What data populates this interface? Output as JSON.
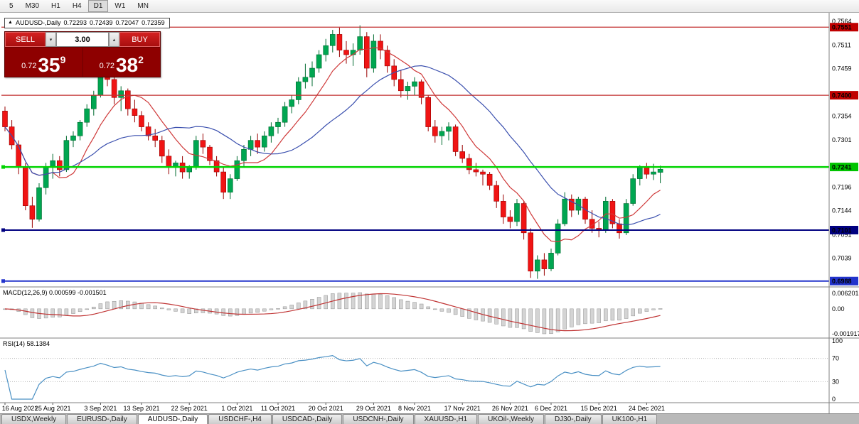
{
  "toolbar": {
    "timeframes": [
      "5",
      "M30",
      "H1",
      "H4",
      "D1",
      "W1",
      "MN"
    ],
    "active": "D1"
  },
  "icons": {
    "chevron_up": "▴",
    "chevron_down": "▾",
    "symbol_marker": "▲"
  },
  "chart_header": {
    "symbol_label": "AUDUSD-,Daily",
    "open": "0.72293",
    "high": "0.72439",
    "low": "0.72047",
    "close": "0.72359"
  },
  "trade_panel": {
    "sell_label": "SELL",
    "buy_label": "BUY",
    "volume": "3.00",
    "sell_price": {
      "base": "0.72",
      "big": "35",
      "sup": "9"
    },
    "buy_price": {
      "base": "0.72",
      "big": "38",
      "sup": "2"
    }
  },
  "indicators": {
    "macd_label": "MACD(12,26,9) 0.000599 -0.001501",
    "rsi_label": "RSI(14) 58.1384"
  },
  "tabs": {
    "items": [
      "USDX,Weekly",
      "EURUSD-,Daily",
      "AUDUSD-,Daily",
      "USDCHF-,H4",
      "USDCAD-,Daily",
      "USDCNH-,Daily",
      "XAUUSD-,H1",
      "UKOil-,Weekly",
      "DJ30-,Daily",
      "UK100-,H1"
    ],
    "active_index": 2
  },
  "chart_data": {
    "type": "candlestick",
    "symbol": "AUDUSD-",
    "timeframe": "Daily",
    "price_range": [
      0.6975,
      0.7575
    ],
    "candle_spacing": 9.6,
    "candles": [
      [
        0.7365,
        0.7375,
        0.732,
        0.733
      ],
      [
        0.733,
        0.7345,
        0.728,
        0.729
      ],
      [
        0.729,
        0.73,
        0.7225,
        0.724
      ],
      [
        0.724,
        0.725,
        0.7145,
        0.7155
      ],
      [
        0.7155,
        0.7175,
        0.7106,
        0.7125
      ],
      [
        0.7125,
        0.7205,
        0.712,
        0.7195
      ],
      [
        0.7195,
        0.725,
        0.718,
        0.724
      ],
      [
        0.724,
        0.727,
        0.7215,
        0.7255
      ],
      [
        0.7255,
        0.7265,
        0.722,
        0.7235
      ],
      [
        0.7235,
        0.731,
        0.723,
        0.73
      ],
      [
        0.73,
        0.732,
        0.7285,
        0.731
      ],
      [
        0.731,
        0.7345,
        0.73,
        0.734
      ],
      [
        0.734,
        0.738,
        0.733,
        0.737
      ],
      [
        0.737,
        0.741,
        0.7355,
        0.74
      ],
      [
        0.74,
        0.7478,
        0.7395,
        0.7465
      ],
      [
        0.7465,
        0.747,
        0.742,
        0.7435
      ],
      [
        0.7435,
        0.7445,
        0.738,
        0.7395
      ],
      [
        0.7395,
        0.742,
        0.7365,
        0.741
      ],
      [
        0.741,
        0.7415,
        0.7355,
        0.737
      ],
      [
        0.737,
        0.739,
        0.734,
        0.7355
      ],
      [
        0.7355,
        0.7365,
        0.732,
        0.733
      ],
      [
        0.733,
        0.734,
        0.73,
        0.731
      ],
      [
        0.731,
        0.7325,
        0.7285,
        0.73
      ],
      [
        0.73,
        0.731,
        0.725,
        0.7265
      ],
      [
        0.7265,
        0.728,
        0.7225,
        0.724
      ],
      [
        0.724,
        0.7255,
        0.722,
        0.725
      ],
      [
        0.725,
        0.7265,
        0.7215,
        0.723
      ],
      [
        0.723,
        0.7245,
        0.7215,
        0.724
      ],
      [
        0.724,
        0.731,
        0.7235,
        0.73
      ],
      [
        0.73,
        0.7315,
        0.727,
        0.7285
      ],
      [
        0.7285,
        0.729,
        0.7245,
        0.7255
      ],
      [
        0.7255,
        0.7265,
        0.722,
        0.723
      ],
      [
        0.723,
        0.724,
        0.717,
        0.7185
      ],
      [
        0.7185,
        0.7225,
        0.717,
        0.7215
      ],
      [
        0.7215,
        0.7265,
        0.721,
        0.7255
      ],
      [
        0.7255,
        0.729,
        0.724,
        0.728
      ],
      [
        0.728,
        0.731,
        0.7265,
        0.73
      ],
      [
        0.73,
        0.7315,
        0.727,
        0.7285
      ],
      [
        0.7285,
        0.732,
        0.7275,
        0.731
      ],
      [
        0.731,
        0.734,
        0.7295,
        0.733
      ],
      [
        0.733,
        0.735,
        0.7315,
        0.734
      ],
      [
        0.734,
        0.7385,
        0.733,
        0.7375
      ],
      [
        0.7375,
        0.74,
        0.736,
        0.739
      ],
      [
        0.739,
        0.744,
        0.738,
        0.743
      ],
      [
        0.743,
        0.747,
        0.7415,
        0.744
      ],
      [
        0.744,
        0.7475,
        0.742,
        0.746
      ],
      [
        0.746,
        0.75,
        0.745,
        0.749
      ],
      [
        0.749,
        0.7525,
        0.7475,
        0.751
      ],
      [
        0.751,
        0.7545,
        0.7495,
        0.7535
      ],
      [
        0.7535,
        0.755,
        0.7485,
        0.75
      ],
      [
        0.75,
        0.752,
        0.747,
        0.749
      ],
      [
        0.749,
        0.7515,
        0.7465,
        0.75
      ],
      [
        0.75,
        0.7555,
        0.749,
        0.753
      ],
      [
        0.753,
        0.754,
        0.744,
        0.746
      ],
      [
        0.746,
        0.7535,
        0.745,
        0.752
      ],
      [
        0.752,
        0.7535,
        0.748,
        0.75
      ],
      [
        0.75,
        0.751,
        0.745,
        0.7465
      ],
      [
        0.7465,
        0.748,
        0.742,
        0.7435
      ],
      [
        0.7435,
        0.7455,
        0.7395,
        0.741
      ],
      [
        0.741,
        0.743,
        0.739,
        0.742
      ],
      [
        0.742,
        0.744,
        0.74,
        0.743
      ],
      [
        0.743,
        0.7435,
        0.738,
        0.7395
      ],
      [
        0.7395,
        0.74,
        0.732,
        0.733
      ],
      [
        0.733,
        0.7345,
        0.7295,
        0.731
      ],
      [
        0.731,
        0.733,
        0.729,
        0.732
      ],
      [
        0.732,
        0.734,
        0.73,
        0.733
      ],
      [
        0.733,
        0.7335,
        0.7265,
        0.7275
      ],
      [
        0.7275,
        0.729,
        0.725,
        0.726
      ],
      [
        0.726,
        0.727,
        0.7225,
        0.7235
      ],
      [
        0.7235,
        0.725,
        0.722,
        0.723
      ],
      [
        0.723,
        0.7235,
        0.72,
        0.7225
      ],
      [
        0.7225,
        0.723,
        0.719,
        0.72
      ],
      [
        0.72,
        0.721,
        0.715,
        0.7165
      ],
      [
        0.7165,
        0.718,
        0.7115,
        0.713
      ],
      [
        0.713,
        0.7145,
        0.7105,
        0.712
      ],
      [
        0.712,
        0.717,
        0.711,
        0.716
      ],
      [
        0.716,
        0.7165,
        0.708,
        0.7095
      ],
      [
        0.7095,
        0.7105,
        0.6995,
        0.701
      ],
      [
        0.701,
        0.7045,
        0.6993,
        0.7035
      ],
      [
        0.7035,
        0.705,
        0.7,
        0.7015
      ],
      [
        0.7015,
        0.706,
        0.701,
        0.705
      ],
      [
        0.705,
        0.7125,
        0.7045,
        0.7115
      ],
      [
        0.7115,
        0.7185,
        0.711,
        0.717
      ],
      [
        0.717,
        0.718,
        0.713,
        0.7145
      ],
      [
        0.7145,
        0.7175,
        0.7135,
        0.717
      ],
      [
        0.717,
        0.7175,
        0.7115,
        0.7125
      ],
      [
        0.7125,
        0.7145,
        0.7095,
        0.7105
      ],
      [
        0.7105,
        0.712,
        0.7085,
        0.71
      ],
      [
        0.71,
        0.7175,
        0.7095,
        0.7165
      ],
      [
        0.7165,
        0.717,
        0.7105,
        0.7115
      ],
      [
        0.7115,
        0.7125,
        0.7082,
        0.7095
      ],
      [
        0.7095,
        0.717,
        0.709,
        0.716
      ],
      [
        0.716,
        0.7225,
        0.7155,
        0.7215
      ],
      [
        0.7215,
        0.7245,
        0.72,
        0.724
      ],
      [
        0.724,
        0.725,
        0.7215,
        0.7225
      ],
      [
        0.7225,
        0.7248,
        0.7212,
        0.723
      ],
      [
        0.7229,
        0.7244,
        0.7205,
        0.7236
      ]
    ],
    "x_labels": [
      {
        "text": "16 Aug 2021",
        "index": 0
      },
      {
        "text": "25 Aug 2021",
        "index": 7
      },
      {
        "text": "3 Sep 2021",
        "index": 14
      },
      {
        "text": "13 Sep 2021",
        "index": 20
      },
      {
        "text": "22 Sep 2021",
        "index": 27
      },
      {
        "text": "1 Oct 2021",
        "index": 34
      },
      {
        "text": "11 Oct 2021",
        "index": 40
      },
      {
        "text": "20 Oct 2021",
        "index": 47
      },
      {
        "text": "29 Oct 2021",
        "index": 54
      },
      {
        "text": "8 Nov 2021",
        "index": 60
      },
      {
        "text": "17 Nov 2021",
        "index": 67
      },
      {
        "text": "26 Nov 2021",
        "index": 74
      },
      {
        "text": "6 Dec 2021",
        "index": 80
      },
      {
        "text": "15 Dec 2021",
        "index": 87
      },
      {
        "text": "24 Dec 2021",
        "index": 94
      }
    ],
    "price_ticks": [
      "0.7564",
      "0.7511",
      "0.7459",
      "0.7406",
      "0.7354",
      "0.7301",
      "0.7249",
      "0.7196",
      "0.7144",
      "0.7091",
      "0.7039",
      "0.6986"
    ],
    "hlines": [
      {
        "price": 0.7551,
        "color": "#c23030",
        "width": 1.2,
        "label": "0.7551",
        "label_bg": "#c00000",
        "label_fg": "#ffffff",
        "handles": false
      },
      {
        "price": 0.74,
        "color": "#c23030",
        "width": 1.2,
        "label": "0.7400",
        "label_bg": "#c00000",
        "label_fg": "#ffffff",
        "handles": false
      },
      {
        "price": 0.7241,
        "color": "#00d400",
        "width": 2.5,
        "label": "0.7241",
        "label_bg": "#00c400",
        "label_fg": "#000000",
        "handles": true
      },
      {
        "price": 0.7101,
        "color": "#000080",
        "width": 2,
        "label": "0.7101",
        "label_bg": "#000080",
        "label_fg": "#ffffff",
        "handles": true
      },
      {
        "price": 0.6988,
        "color": "#2233cc",
        "width": 2,
        "label": "0.6988",
        "label_bg": "#2233cc",
        "label_fg": "#ffffff",
        "handles": true
      }
    ],
    "moving_averages": [
      {
        "period": 8,
        "color": "#cf3a3a"
      },
      {
        "period": 20,
        "color": "#3a4fae"
      }
    ],
    "macd": {
      "params": "12,26,9",
      "value": "0.000599",
      "signal_value": "-0.001501",
      "scale_labels": {
        "top": "0.006201",
        "zero": "0.00",
        "bottom": "-0.001917"
      }
    },
    "rsi": {
      "period": 14,
      "value": "58.1384",
      "levels": [
        100,
        70,
        30,
        0
      ]
    },
    "colors": {
      "up": "#00a651",
      "up_border": "#006b30",
      "down": "#f01414",
      "down_border": "#990000",
      "macd_hist": "#d4d4d4",
      "macd_hist_border": "#8f8f8f",
      "macd_signal": "#c03434",
      "rsi_line": "#4a90c4",
      "rsi_level": "#b8b8b8",
      "separator": "#808080",
      "axis_text": "#111111"
    }
  }
}
